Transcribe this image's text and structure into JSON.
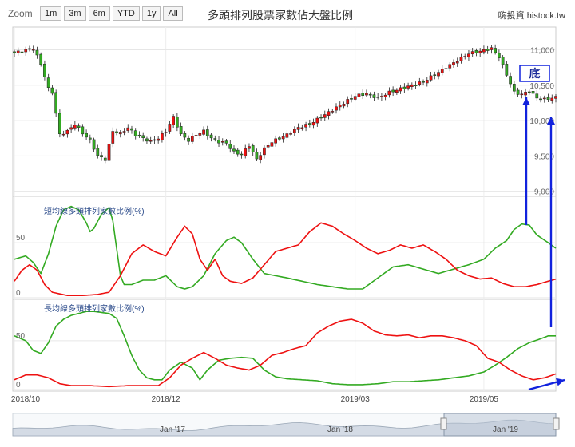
{
  "toolbar": {
    "zoom_label": "Zoom",
    "buttons": [
      "1m",
      "3m",
      "6m",
      "YTD",
      "1y",
      "All"
    ]
  },
  "header": {
    "title": "多頭排列股票家數佔大盤比例",
    "site": "嗨投資 histock.tw"
  },
  "colors": {
    "green": "#33aa22",
    "red": "#ee1111",
    "blue_arrow": "#1122dd",
    "annotation_text": "#1a2a99",
    "panel_title": "#2a4a8a",
    "navigator_fill": "#d4dbe5"
  },
  "annotation": {
    "label": "底"
  },
  "x_axis": {
    "labels": [
      "2018/10",
      "2018/12",
      "2019/03",
      "2019/05"
    ],
    "positions": [
      0.0,
      40.0,
      90.0,
      124.0
    ],
    "range": [
      0,
      143
    ]
  },
  "navigator": {
    "labels": [
      "Jan '17",
      "Jan '18",
      "Jan '19"
    ]
  },
  "chart_data": [
    {
      "type": "candlestick",
      "title": "",
      "y_ticks": [
        "11,000",
        "10,500",
        "10,000",
        "9,500",
        "9,000"
      ],
      "y_tick_values": [
        11000,
        10500,
        10000,
        9500,
        9000
      ],
      "ylim": [
        8950,
        11300
      ],
      "close_keypoints": [
        [
          0,
          10960
        ],
        [
          5,
          11020
        ],
        [
          7,
          10800
        ],
        [
          9,
          10450
        ],
        [
          10,
          10400
        ],
        [
          12,
          9800
        ],
        [
          14,
          9850
        ],
        [
          16,
          9950
        ],
        [
          18,
          9820
        ],
        [
          20,
          9720
        ],
        [
          22,
          9500
        ],
        [
          24,
          9450
        ],
        [
          26,
          9850
        ],
        [
          28,
          9820
        ],
        [
          30,
          9900
        ],
        [
          32,
          9800
        ],
        [
          34,
          9750
        ],
        [
          36,
          9700
        ],
        [
          38,
          9750
        ],
        [
          40,
          9850
        ],
        [
          42,
          10050
        ],
        [
          44,
          9800
        ],
        [
          46,
          9720
        ],
        [
          48,
          9800
        ],
        [
          50,
          9850
        ],
        [
          52,
          9750
        ],
        [
          54,
          9700
        ],
        [
          56,
          9680
        ],
        [
          58,
          9550
        ],
        [
          60,
          9520
        ],
        [
          62,
          9650
        ],
        [
          64,
          9450
        ],
        [
          66,
          9600
        ],
        [
          68,
          9700
        ],
        [
          70,
          9750
        ],
        [
          72,
          9800
        ],
        [
          75,
          9900
        ],
        [
          78,
          9950
        ],
        [
          81,
          10050
        ],
        [
          84,
          10150
        ],
        [
          87,
          10250
        ],
        [
          90,
          10350
        ],
        [
          93,
          10380
        ],
        [
          96,
          10320
        ],
        [
          99,
          10400
        ],
        [
          102,
          10450
        ],
        [
          105,
          10500
        ],
        [
          108,
          10550
        ],
        [
          111,
          10650
        ],
        [
          114,
          10750
        ],
        [
          117,
          10850
        ],
        [
          120,
          10950
        ],
        [
          123,
          10980
        ],
        [
          126,
          11020
        ],
        [
          128,
          10900
        ],
        [
          130,
          10650
        ],
        [
          132,
          10400
        ],
        [
          134,
          10370
        ],
        [
          136,
          10420
        ],
        [
          138,
          10320
        ],
        [
          140,
          10300
        ],
        [
          143,
          10330
        ]
      ]
    },
    {
      "type": "line",
      "title": "短均線多頭排列家數比例(%)",
      "y_ticks": [
        "50",
        "0"
      ],
      "y_tick_values": [
        50,
        0
      ],
      "ylim": [
        0,
        90
      ],
      "series": [
        {
          "color": "#33aa22",
          "points": [
            [
              0,
              35
            ],
            [
              3,
              38
            ],
            [
              5,
              32
            ],
            [
              7,
              22
            ],
            [
              9,
              40
            ],
            [
              11,
              65
            ],
            [
              13,
              80
            ],
            [
              15,
              83
            ],
            [
              17,
              80
            ],
            [
              19,
              68
            ],
            [
              20,
              60
            ],
            [
              21,
              63
            ],
            [
              23,
              76
            ],
            [
              25,
              82
            ],
            [
              26,
              70
            ],
            [
              27,
              45
            ],
            [
              28,
              20
            ],
            [
              29,
              12
            ],
            [
              31,
              12
            ],
            [
              34,
              16
            ],
            [
              37,
              16
            ],
            [
              40,
              20
            ],
            [
              43,
              10
            ],
            [
              45,
              8
            ],
            [
              47,
              10
            ],
            [
              50,
              20
            ],
            [
              53,
              40
            ],
            [
              56,
              52
            ],
            [
              58,
              55
            ],
            [
              60,
              50
            ],
            [
              63,
              35
            ],
            [
              66,
              22
            ],
            [
              69,
              20
            ],
            [
              72,
              18
            ],
            [
              76,
              15
            ],
            [
              80,
              12
            ],
            [
              84,
              10
            ],
            [
              88,
              8
            ],
            [
              92,
              8
            ],
            [
              96,
              18
            ],
            [
              100,
              28
            ],
            [
              104,
              30
            ],
            [
              108,
              26
            ],
            [
              112,
              22
            ],
            [
              116,
              26
            ],
            [
              120,
              30
            ],
            [
              124,
              35
            ],
            [
              127,
              45
            ],
            [
              130,
              52
            ],
            [
              132,
              62
            ],
            [
              134,
              67
            ],
            [
              136,
              66
            ],
            [
              138,
              57
            ],
            [
              141,
              50
            ],
            [
              143,
              45
            ]
          ]
        },
        {
          "color": "#ee1111",
          "points": [
            [
              0,
              15
            ],
            [
              2,
              25
            ],
            [
              4,
              30
            ],
            [
              6,
              25
            ],
            [
              8,
              12
            ],
            [
              10,
              5
            ],
            [
              14,
              2
            ],
            [
              18,
              2
            ],
            [
              22,
              3
            ],
            [
              25,
              5
            ],
            [
              28,
              20
            ],
            [
              31,
              40
            ],
            [
              34,
              48
            ],
            [
              37,
              42
            ],
            [
              40,
              38
            ],
            [
              43,
              55
            ],
            [
              45,
              65
            ],
            [
              47,
              58
            ],
            [
              49,
              35
            ],
            [
              51,
              25
            ],
            [
              53,
              35
            ],
            [
              55,
              20
            ],
            [
              57,
              15
            ],
            [
              60,
              13
            ],
            [
              63,
              18
            ],
            [
              66,
              30
            ],
            [
              69,
              42
            ],
            [
              72,
              45
            ],
            [
              75,
              48
            ],
            [
              78,
              60
            ],
            [
              81,
              68
            ],
            [
              84,
              65
            ],
            [
              87,
              58
            ],
            [
              90,
              52
            ],
            [
              93,
              45
            ],
            [
              96,
              40
            ],
            [
              99,
              43
            ],
            [
              102,
              48
            ],
            [
              105,
              45
            ],
            [
              108,
              48
            ],
            [
              111,
              42
            ],
            [
              114,
              35
            ],
            [
              117,
              25
            ],
            [
              120,
              20
            ],
            [
              123,
              17
            ],
            [
              126,
              18
            ],
            [
              129,
              13
            ],
            [
              132,
              10
            ],
            [
              135,
              10
            ],
            [
              138,
              12
            ],
            [
              141,
              15
            ],
            [
              143,
              17
            ]
          ]
        }
      ]
    },
    {
      "type": "line",
      "title": "長均線多頭排列家數比例(%)",
      "y_ticks": [
        "50",
        "0"
      ],
      "y_tick_values": [
        50,
        0
      ],
      "ylim": [
        0,
        90
      ],
      "series": [
        {
          "color": "#33aa22",
          "points": [
            [
              0,
              55
            ],
            [
              3,
              50
            ],
            [
              5,
              40
            ],
            [
              7,
              37
            ],
            [
              9,
              48
            ],
            [
              11,
              65
            ],
            [
              13,
              72
            ],
            [
              15,
              76
            ],
            [
              17,
              78
            ],
            [
              19,
              80
            ],
            [
              21,
              80
            ],
            [
              23,
              79
            ],
            [
              25,
              78
            ],
            [
              27,
              73
            ],
            [
              29,
              55
            ],
            [
              31,
              35
            ],
            [
              33,
              20
            ],
            [
              35,
              12
            ],
            [
              37,
              10
            ],
            [
              39,
              10
            ],
            [
              41,
              20
            ],
            [
              44,
              28
            ],
            [
              47,
              22
            ],
            [
              49,
              10
            ],
            [
              51,
              20
            ],
            [
              54,
              30
            ],
            [
              57,
              32
            ],
            [
              60,
              33
            ],
            [
              63,
              32
            ],
            [
              66,
              20
            ],
            [
              69,
              13
            ],
            [
              72,
              11
            ],
            [
              76,
              10
            ],
            [
              80,
              9
            ],
            [
              84,
              6
            ],
            [
              88,
              5
            ],
            [
              92,
              5
            ],
            [
              96,
              6
            ],
            [
              100,
              8
            ],
            [
              104,
              8
            ],
            [
              108,
              9
            ],
            [
              112,
              10
            ],
            [
              116,
              12
            ],
            [
              120,
              14
            ],
            [
              124,
              18
            ],
            [
              127,
              25
            ],
            [
              130,
              33
            ],
            [
              133,
              42
            ],
            [
              136,
              48
            ],
            [
              139,
              52
            ],
            [
              141,
              55
            ],
            [
              143,
              55
            ]
          ]
        },
        {
          "color": "#ee1111",
          "points": [
            [
              0,
              10
            ],
            [
              3,
              15
            ],
            [
              6,
              15
            ],
            [
              9,
              12
            ],
            [
              12,
              6
            ],
            [
              15,
              4
            ],
            [
              20,
              4
            ],
            [
              25,
              3
            ],
            [
              30,
              4
            ],
            [
              34,
              4
            ],
            [
              38,
              4
            ],
            [
              41,
              12
            ],
            [
              44,
              25
            ],
            [
              47,
              32
            ],
            [
              50,
              38
            ],
            [
              53,
              32
            ],
            [
              56,
              25
            ],
            [
              59,
              22
            ],
            [
              62,
              20
            ],
            [
              65,
              25
            ],
            [
              68,
              35
            ],
            [
              71,
              38
            ],
            [
              74,
              42
            ],
            [
              77,
              45
            ],
            [
              80,
              58
            ],
            [
              83,
              65
            ],
            [
              86,
              70
            ],
            [
              89,
              72
            ],
            [
              92,
              68
            ],
            [
              95,
              60
            ],
            [
              98,
              56
            ],
            [
              101,
              55
            ],
            [
              104,
              56
            ],
            [
              107,
              53
            ],
            [
              110,
              55
            ],
            [
              113,
              55
            ],
            [
              116,
              53
            ],
            [
              119,
              50
            ],
            [
              122,
              45
            ],
            [
              125,
              32
            ],
            [
              128,
              28
            ],
            [
              131,
              20
            ],
            [
              134,
              14
            ],
            [
              137,
              10
            ],
            [
              140,
              12
            ],
            [
              143,
              16
            ]
          ]
        }
      ]
    }
  ]
}
